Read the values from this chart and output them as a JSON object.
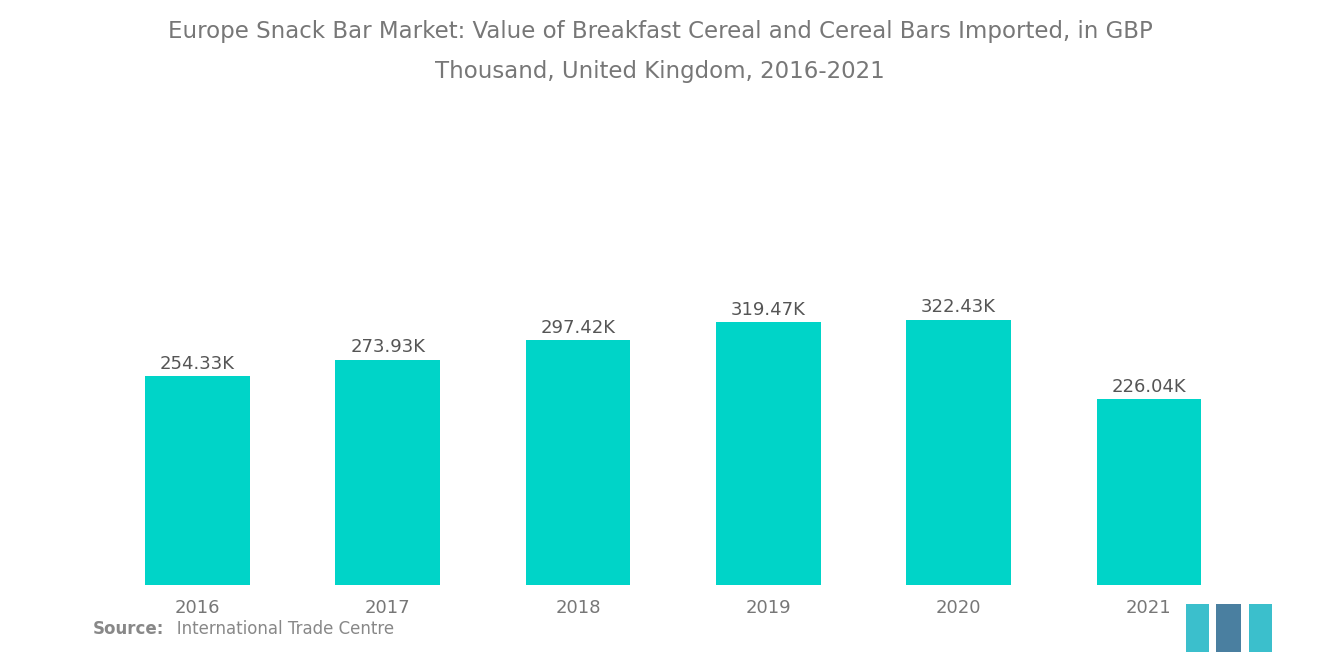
{
  "title_line1": "Europe Snack Bar Market: Value of Breakfast Cereal and Cereal Bars Imported, in GBP",
  "title_line2": "Thousand, United Kingdom, 2016-2021",
  "years": [
    "2016",
    "2017",
    "2018",
    "2019",
    "2020",
    "2021"
  ],
  "values": [
    254.33,
    273.93,
    297.42,
    319.47,
    322.43,
    226.04
  ],
  "labels": [
    "254.33K",
    "273.93K",
    "297.42K",
    "319.47K",
    "322.43K",
    "226.04K"
  ],
  "bar_color": "#00D4C8",
  "title_color": "#777777",
  "label_color": "#555555",
  "tick_color": "#777777",
  "source_bold": "Source:",
  "source_text": "   International Trade Centre",
  "background_color": "#ffffff",
  "ylim_max": 420,
  "bar_width": 0.55,
  "title_fontsize": 16.5,
  "label_fontsize": 13,
  "tick_fontsize": 13,
  "source_fontsize": 12
}
